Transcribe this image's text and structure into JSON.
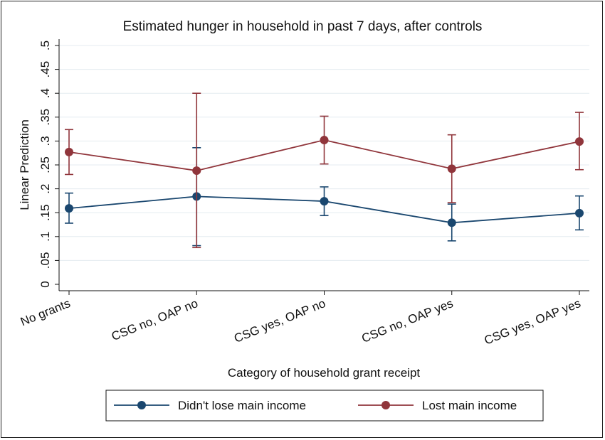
{
  "chart_data": {
    "type": "line",
    "title": "Estimated hunger in household in past 7 days, after controls",
    "xlabel": "Category of household grant receipt",
    "ylabel": "Linear Prediction",
    "categories": [
      "No grants",
      "CSG no, OAP no",
      "CSG yes, OAP no",
      "CSG no, OAP yes",
      "CSG yes, OAP yes"
    ],
    "ylim": [
      0,
      0.5
    ],
    "yticks": [
      0,
      0.05,
      0.1,
      0.15,
      0.2,
      0.25,
      0.3,
      0.35,
      0.4,
      0.45,
      0.5
    ],
    "ytick_labels": [
      "0",
      ".05",
      ".1",
      ".15",
      ".2",
      ".25",
      ".3",
      ".35",
      ".4",
      ".45",
      ".5"
    ],
    "grid": true,
    "legend_position": "bottom",
    "series": [
      {
        "name": "Didn't lose main income",
        "color": "#1a476f",
        "values": [
          0.159,
          0.184,
          0.174,
          0.129,
          0.149
        ],
        "lower": [
          0.128,
          0.081,
          0.144,
          0.091,
          0.114
        ],
        "upper": [
          0.191,
          0.286,
          0.204,
          0.168,
          0.185
        ]
      },
      {
        "name": "Lost main income",
        "color": "#90353b",
        "values": [
          0.277,
          0.238,
          0.302,
          0.242,
          0.299
        ],
        "lower": [
          0.23,
          0.077,
          0.252,
          0.171,
          0.24
        ],
        "upper": [
          0.324,
          0.4,
          0.352,
          0.313,
          0.36
        ]
      }
    ]
  }
}
